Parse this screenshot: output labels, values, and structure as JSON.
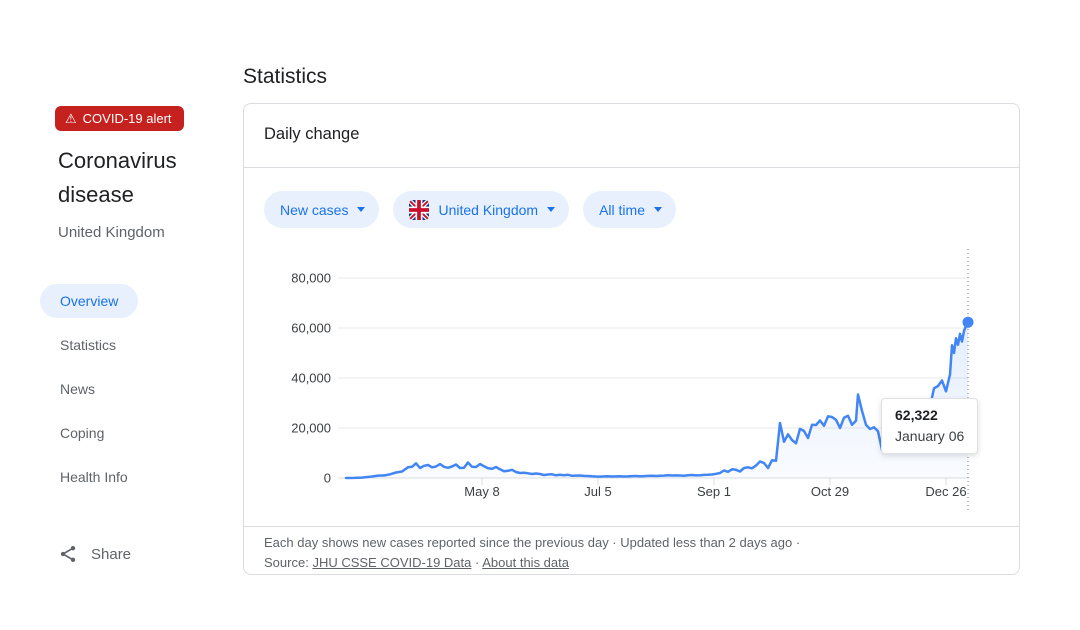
{
  "sidebar": {
    "alert": {
      "icon": "⚠",
      "label": "COVID-19 alert"
    },
    "title": "Coronavirus disease",
    "subtitle": "United Kingdom",
    "nav": [
      {
        "label": "Overview",
        "active": true
      },
      {
        "label": "Statistics",
        "active": false
      },
      {
        "label": "News",
        "active": false
      },
      {
        "label": "Coping",
        "active": false
      },
      {
        "label": "Health Info",
        "active": false
      }
    ],
    "share_label": "Share"
  },
  "main": {
    "heading": "Statistics",
    "card": {
      "title": "Daily change",
      "filters": {
        "metric": "New cases",
        "region": "United Kingdom",
        "range": "All time"
      },
      "tooltip": {
        "value": "62,322",
        "date": "January 06"
      },
      "footer": {
        "line1": "Each day shows new cases reported since the previous day · Updated less than 2 days ago  ·",
        "source_label": "Source:",
        "source_link": "JHU CSSE COVID-19 Data",
        "separator": "·",
        "about_link": "About this data"
      }
    }
  },
  "chart_data": {
    "type": "area",
    "title": "Daily change",
    "series_name": "New cases",
    "region": "United Kingdom",
    "x_domain": [
      "2020-03-01",
      "2021-01-06"
    ],
    "ylim": [
      0,
      80000
    ],
    "grid": true,
    "yticks": [
      {
        "v": 0,
        "label": "0"
      },
      {
        "v": 20000,
        "label": "20,000"
      },
      {
        "v": 40000,
        "label": "40,000"
      },
      {
        "v": 60000,
        "label": "60,000"
      },
      {
        "v": 80000,
        "label": "80,000"
      }
    ],
    "xticks": [
      {
        "date": "2020-05-08",
        "label": "May 8"
      },
      {
        "date": "2020-07-05",
        "label": "Jul 5"
      },
      {
        "date": "2020-09-01",
        "label": "Sep 1"
      },
      {
        "date": "2020-10-29",
        "label": "Oct 29"
      },
      {
        "date": "2020-12-26",
        "label": "Dec 26"
      }
    ],
    "points": [
      [
        "2020-03-01",
        5
      ],
      [
        "2020-03-05",
        45
      ],
      [
        "2020-03-09",
        160
      ],
      [
        "2020-03-13",
        500
      ],
      [
        "2020-03-17",
        970
      ],
      [
        "2020-03-20",
        1000
      ],
      [
        "2020-03-23",
        1500
      ],
      [
        "2020-03-26",
        2200
      ],
      [
        "2020-03-29",
        2600
      ],
      [
        "2020-04-01",
        4300
      ],
      [
        "2020-04-03",
        4500
      ],
      [
        "2020-04-05",
        5900
      ],
      [
        "2020-04-07",
        4000
      ],
      [
        "2020-04-09",
        4900
      ],
      [
        "2020-04-11",
        5200
      ],
      [
        "2020-04-13",
        4300
      ],
      [
        "2020-04-15",
        4600
      ],
      [
        "2020-04-17",
        5600
      ],
      [
        "2020-04-19",
        4500
      ],
      [
        "2020-04-21",
        4100
      ],
      [
        "2020-04-23",
        4600
      ],
      [
        "2020-04-25",
        5400
      ],
      [
        "2020-04-27",
        4000
      ],
      [
        "2020-04-29",
        4100
      ],
      [
        "2020-05-01",
        6200
      ],
      [
        "2020-05-03",
        4500
      ],
      [
        "2020-05-05",
        4400
      ],
      [
        "2020-05-07",
        5600
      ],
      [
        "2020-05-09",
        4700
      ],
      [
        "2020-05-11",
        3900
      ],
      [
        "2020-05-13",
        3700
      ],
      [
        "2020-05-15",
        4400
      ],
      [
        "2020-05-17",
        3500
      ],
      [
        "2020-05-19",
        2700
      ],
      [
        "2020-05-21",
        2900
      ],
      [
        "2020-05-23",
        3300
      ],
      [
        "2020-05-25",
        2400
      ],
      [
        "2020-05-27",
        2000
      ],
      [
        "2020-05-29",
        2100
      ],
      [
        "2020-05-31",
        1900
      ],
      [
        "2020-06-02",
        1600
      ],
      [
        "2020-06-04",
        1800
      ],
      [
        "2020-06-06",
        1600
      ],
      [
        "2020-06-08",
        1200
      ],
      [
        "2020-06-10",
        1400
      ],
      [
        "2020-06-12",
        1500
      ],
      [
        "2020-06-14",
        1100
      ],
      [
        "2020-06-16",
        1300
      ],
      [
        "2020-06-18",
        1100
      ],
      [
        "2020-06-20",
        1300
      ],
      [
        "2020-06-22",
        900
      ],
      [
        "2020-06-24",
        950
      ],
      [
        "2020-06-26",
        1000
      ],
      [
        "2020-06-28",
        850
      ],
      [
        "2020-06-30",
        800
      ],
      [
        "2020-07-02",
        700
      ],
      [
        "2020-07-04",
        600
      ],
      [
        "2020-07-06",
        550
      ],
      [
        "2020-07-08",
        650
      ],
      [
        "2020-07-10",
        700
      ],
      [
        "2020-07-12",
        600
      ],
      [
        "2020-07-14",
        650
      ],
      [
        "2020-07-16",
        700
      ],
      [
        "2020-07-18",
        600
      ],
      [
        "2020-07-20",
        650
      ],
      [
        "2020-07-22",
        750
      ],
      [
        "2020-07-24",
        800
      ],
      [
        "2020-07-26",
        700
      ],
      [
        "2020-07-28",
        750
      ],
      [
        "2020-07-30",
        850
      ],
      [
        "2020-08-01",
        900
      ],
      [
        "2020-08-03",
        800
      ],
      [
        "2020-08-05",
        900
      ],
      [
        "2020-08-07",
        950
      ],
      [
        "2020-08-09",
        1100
      ],
      [
        "2020-08-11",
        1000
      ],
      [
        "2020-08-13",
        1050
      ],
      [
        "2020-08-15",
        1000
      ],
      [
        "2020-08-17",
        900
      ],
      [
        "2020-08-19",
        1100
      ],
      [
        "2020-08-21",
        1200
      ],
      [
        "2020-08-23",
        1050
      ],
      [
        "2020-08-25",
        1100
      ],
      [
        "2020-08-27",
        1250
      ],
      [
        "2020-08-29",
        1300
      ],
      [
        "2020-08-31",
        1400
      ],
      [
        "2020-09-02",
        1700
      ],
      [
        "2020-09-04",
        2000
      ],
      [
        "2020-09-06",
        3000
      ],
      [
        "2020-09-08",
        2500
      ],
      [
        "2020-09-10",
        3500
      ],
      [
        "2020-09-12",
        3300
      ],
      [
        "2020-09-14",
        2600
      ],
      [
        "2020-09-16",
        4000
      ],
      [
        "2020-09-18",
        4300
      ],
      [
        "2020-09-20",
        3900
      ],
      [
        "2020-09-22",
        5000
      ],
      [
        "2020-09-24",
        6600
      ],
      [
        "2020-09-26",
        6000
      ],
      [
        "2020-09-28",
        4000
      ],
      [
        "2020-09-30",
        7100
      ],
      [
        "2020-10-02",
        6900
      ],
      [
        "2020-10-04",
        22000
      ],
      [
        "2020-10-06",
        14500
      ],
      [
        "2020-10-08",
        17500
      ],
      [
        "2020-10-10",
        15200
      ],
      [
        "2020-10-12",
        13900
      ],
      [
        "2020-10-14",
        19700
      ],
      [
        "2020-10-16",
        18800
      ],
      [
        "2020-10-18",
        16000
      ],
      [
        "2020-10-20",
        21300
      ],
      [
        "2020-10-22",
        21200
      ],
      [
        "2020-10-24",
        23000
      ],
      [
        "2020-10-26",
        20900
      ],
      [
        "2020-10-28",
        24700
      ],
      [
        "2020-10-30",
        24400
      ],
      [
        "2020-11-01",
        23300
      ],
      [
        "2020-11-03",
        20000
      ],
      [
        "2020-11-05",
        24100
      ],
      [
        "2020-11-07",
        24900
      ],
      [
        "2020-11-09",
        21300
      ],
      [
        "2020-11-11",
        22900
      ],
      [
        "2020-11-12",
        33400
      ],
      [
        "2020-11-14",
        26900
      ],
      [
        "2020-11-16",
        21300
      ],
      [
        "2020-11-18",
        19600
      ],
      [
        "2020-11-20",
        20300
      ],
      [
        "2020-11-22",
        18700
      ],
      [
        "2020-11-24",
        11300
      ],
      [
        "2020-11-26",
        17600
      ],
      [
        "2020-11-28",
        15900
      ],
      [
        "2020-11-30",
        12300
      ],
      [
        "2020-12-02",
        13400
      ],
      [
        "2020-12-04",
        14900
      ],
      [
        "2020-12-06",
        17300
      ],
      [
        "2020-12-08",
        12300
      ],
      [
        "2020-12-10",
        20900
      ],
      [
        "2020-12-12",
        21500
      ],
      [
        "2020-12-14",
        20300
      ],
      [
        "2020-12-16",
        25200
      ],
      [
        "2020-12-18",
        28500
      ],
      [
        "2020-12-20",
        35900
      ],
      [
        "2020-12-22",
        36800
      ],
      [
        "2020-12-24",
        39000
      ],
      [
        "2020-12-26",
        34700
      ],
      [
        "2020-12-28",
        41400
      ],
      [
        "2020-12-29",
        53100
      ],
      [
        "2020-12-30",
        50000
      ],
      [
        "2020-12-31",
        55900
      ],
      [
        "2021-01-01",
        53300
      ],
      [
        "2021-01-02",
        57700
      ],
      [
        "2021-01-03",
        54600
      ],
      [
        "2021-01-04",
        58800
      ],
      [
        "2021-01-05",
        60900
      ],
      [
        "2021-01-06",
        62322
      ]
    ],
    "highlight": {
      "date": "2021-01-06",
      "value": 62322,
      "value_label": "62,322",
      "date_label": "January 06"
    },
    "colors": {
      "line": "#4285f4",
      "fill_top": "rgba(66,133,244,0.14)",
      "fill_bottom": "rgba(66,133,244,0.03)",
      "grid": "#e6e8eb",
      "zero_line": "#dadce0",
      "tick": "#dadce0",
      "cursor": "#80868b"
    }
  }
}
